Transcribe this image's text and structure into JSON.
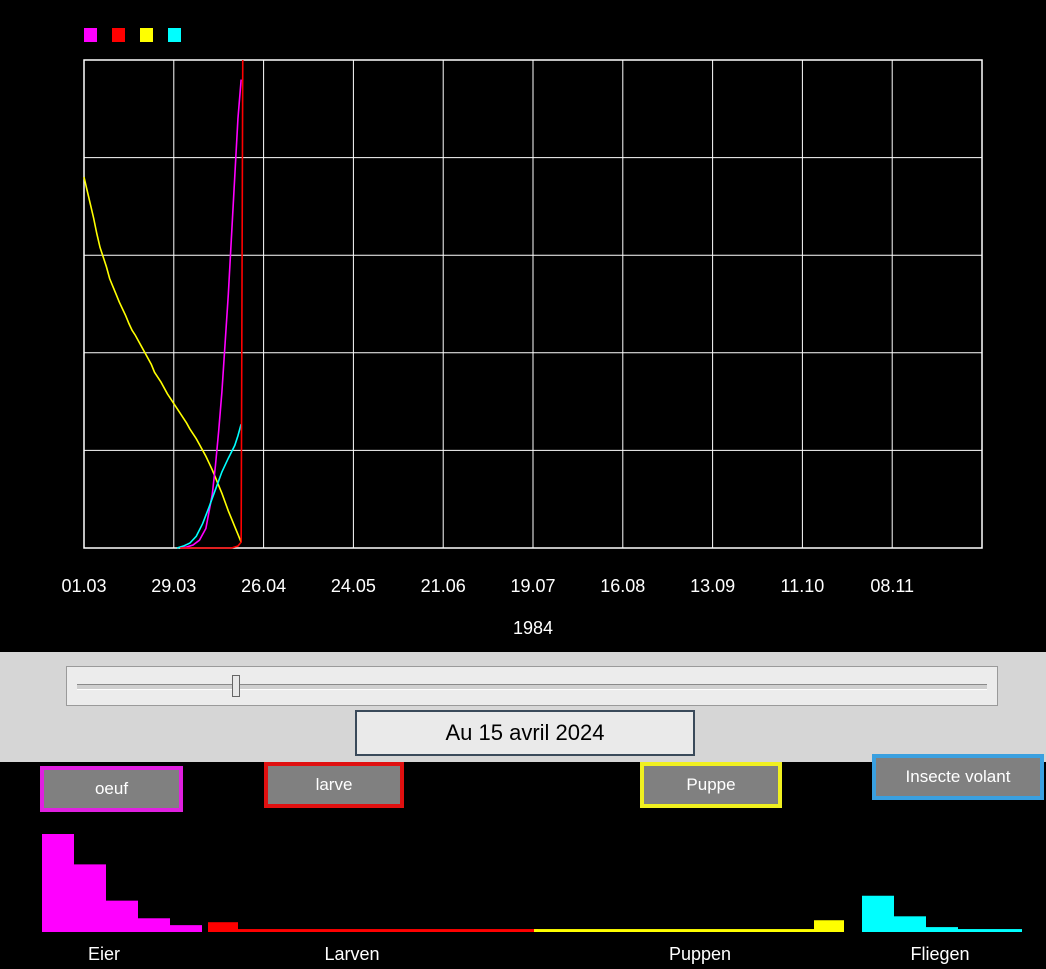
{
  "colors": {
    "eggs": "#ff00ff",
    "larvae": "#ff0000",
    "pupae": "#ffff00",
    "flies": "#00ffff",
    "grid": "#ffffff",
    "background": "#000000"
  },
  "legend_swatches": [
    "#ff00ff",
    "#ff0000",
    "#ffff00",
    "#00ffff"
  ],
  "chart_data": {
    "type": "line",
    "x_tick_labels": [
      "01.03",
      "29.03",
      "26.04",
      "24.05",
      "21.06",
      "19.07",
      "16.08",
      "13.09",
      "11.10",
      "08.11"
    ],
    "year_label": "1984",
    "grid": true,
    "ylim": [
      0,
      5
    ],
    "series": [
      {
        "color": "#ffff00",
        "x": [
          0,
          1,
          2,
          3,
          4,
          5,
          6,
          7,
          8,
          9,
          10,
          11,
          12,
          13,
          14,
          15,
          16,
          17,
          18,
          19,
          20,
          21,
          22,
          23,
          24,
          25,
          26,
          27,
          28,
          29,
          30,
          31,
          32,
          33,
          34,
          35,
          36,
          37,
          38,
          39,
          40,
          41,
          42,
          43,
          44,
          45,
          46,
          47,
          48,
          49
        ],
        "y": [
          3.8,
          3.66,
          3.52,
          3.38,
          3.22,
          3.08,
          2.98,
          2.88,
          2.76,
          2.68,
          2.6,
          2.52,
          2.45,
          2.38,
          2.3,
          2.23,
          2.18,
          2.12,
          2.06,
          2.0,
          1.94,
          1.88,
          1.8,
          1.75,
          1.7,
          1.64,
          1.58,
          1.53,
          1.48,
          1.43,
          1.38,
          1.33,
          1.28,
          1.22,
          1.17,
          1.12,
          1.06,
          1.0,
          0.94,
          0.87,
          0.8,
          0.72,
          0.64,
          0.56,
          0.47,
          0.38,
          0.3,
          0.22,
          0.14,
          0.06
        ]
      },
      {
        "color": "#ff00ff",
        "x": [
          30,
          32,
          34,
          36,
          38,
          40,
          41,
          42,
          43,
          44,
          45,
          46,
          47,
          48,
          49
        ],
        "y": [
          0,
          0.01,
          0.03,
          0.08,
          0.2,
          0.55,
          0.85,
          1.2,
          1.6,
          2.1,
          2.6,
          3.2,
          3.8,
          4.4,
          4.8
        ]
      },
      {
        "color": "#00ffff",
        "x": [
          29,
          31,
          33,
          35,
          37,
          39,
          41,
          43,
          45,
          47,
          48,
          49
        ],
        "y": [
          0,
          0.02,
          0.05,
          0.12,
          0.25,
          0.42,
          0.6,
          0.78,
          0.92,
          1.05,
          1.15,
          1.27
        ]
      },
      {
        "color": "#ff0000",
        "x": [
          30,
          40,
          46,
          48,
          49,
          49.5
        ],
        "y": [
          0,
          0,
          0,
          0.02,
          0.06,
          5.0
        ]
      }
    ]
  },
  "slider": {
    "value_fraction": 0.17
  },
  "date_label": "Au 15 avril 2024",
  "stage_buttons": {
    "eggs": "oeuf",
    "larvae": "larve",
    "pupae": "Puppe",
    "flies": "Insecte volant"
  },
  "histogram": {
    "type": "bar",
    "eggs": [
      1.0,
      0.69,
      0.32,
      0.14,
      0.07
    ],
    "larvae": [
      0.1,
      0.03,
      0.03,
      0.03,
      0.03,
      0.03,
      0.03,
      0.03,
      0.03,
      0.03,
      0.03,
      0.03,
      0.03,
      0.03,
      0.03,
      0.03
    ],
    "pupae": [
      0.03,
      0.03,
      0.03,
      0.03,
      0.03,
      0.03,
      0.03,
      0.03,
      0.03,
      0.03,
      0.03,
      0.03,
      0.03,
      0.03,
      0.12
    ],
    "flies": [
      0.37,
      0.16,
      0.05,
      0.03,
      0.03
    ],
    "labels": [
      "Eier",
      "Larven",
      "Puppen",
      "Fliegen"
    ]
  }
}
